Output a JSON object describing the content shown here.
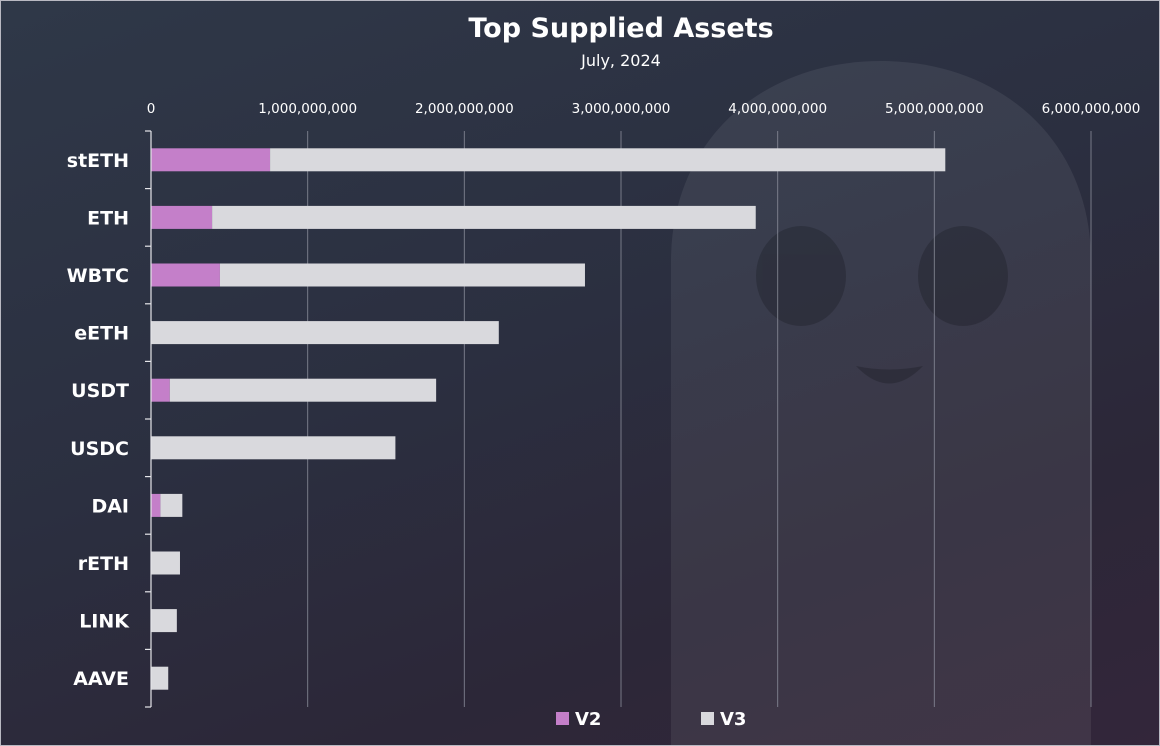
{
  "chart_data": {
    "type": "bar",
    "orientation": "horizontal",
    "stacked": true,
    "title": "Top Supplied Assets",
    "subtitle": "July, 2024",
    "categories": [
      "stETH",
      "ETH",
      "WBTC",
      "eETH",
      "USDT",
      "USDC",
      "DAI",
      "rETH",
      "LINK",
      "AAVE"
    ],
    "series": [
      {
        "name": "V2",
        "color": "#c47fc9",
        "values": [
          760000000,
          390000000,
          440000000,
          0,
          120000000,
          0,
          60000000,
          0,
          0,
          0
        ]
      },
      {
        "name": "V3",
        "color": "#d9d9dd",
        "values": [
          4310000000,
          3470000000,
          2330000000,
          2220000000,
          1700000000,
          1560000000,
          140000000,
          185000000,
          165000000,
          110000000
        ]
      }
    ],
    "xlim": [
      0,
      6000000000
    ],
    "ticks": [
      0,
      1000000000,
      2000000000,
      3000000000,
      4000000000,
      5000000000,
      6000000000
    ],
    "tick_labels": [
      "0",
      "1,000,000,000",
      "2,000,000,000",
      "3,000,000,000",
      "4,000,000,000",
      "5,000,000,000",
      "6,000,000,000"
    ],
    "grid": true,
    "x_axis_position": "top",
    "legend_position": "bottom"
  }
}
